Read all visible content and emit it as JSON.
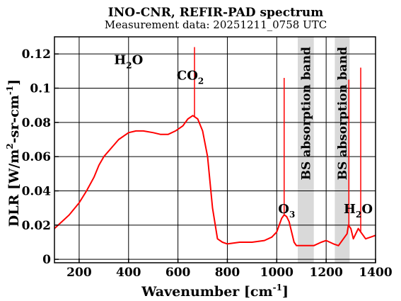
{
  "chart_data": {
    "type": "line",
    "title": "INO-CNR, REFIR-PAD spectrum",
    "subtitle": "Measurement data: 20251211_0758 UTC",
    "xlabel": "Wavenumber [cm^-1]",
    "ylabel": "DLR [W/m^2-sr-cm^-1]",
    "xlim": [
      100,
      1400
    ],
    "ylim": [
      -0.002,
      0.13
    ],
    "x_ticks": [
      200,
      400,
      600,
      800,
      1000,
      1200,
      1400
    ],
    "y_ticks": [
      0,
      0.02,
      0.04,
      0.06,
      0.08,
      0.1,
      0.12
    ],
    "y_tick_labels": [
      "0",
      "0.02",
      "0.04",
      "0.06",
      "0.08",
      "0.1",
      "0.12"
    ],
    "grid": true,
    "line_color": "#ff0000",
    "band_color": "#d9d9d9",
    "series": [
      {
        "x": [
          100,
          130,
          160,
          200,
          230,
          260,
          280,
          300,
          330,
          360,
          400,
          430,
          460,
          500,
          530,
          560,
          590,
          620,
          640,
          660,
          670,
          680,
          700,
          720,
          740,
          760,
          780,
          800,
          850,
          900,
          950,
          980,
          1000,
          1010,
          1020,
          1030,
          1040,
          1050,
          1060,
          1070,
          1080,
          1150,
          1180,
          1200,
          1230,
          1250,
          1285,
          1290,
          1300,
          1310,
          1320,
          1330,
          1340,
          1350,
          1360,
          1380,
          1400
        ],
        "y": [
          0.018,
          0.022,
          0.026,
          0.033,
          0.04,
          0.048,
          0.055,
          0.06,
          0.065,
          0.07,
          0.074,
          0.075,
          0.075,
          0.074,
          0.073,
          0.073,
          0.075,
          0.078,
          0.082,
          0.084,
          0.083,
          0.082,
          0.075,
          0.06,
          0.03,
          0.012,
          0.01,
          0.009,
          0.01,
          0.01,
          0.011,
          0.013,
          0.016,
          0.02,
          0.024,
          0.026,
          0.025,
          0.022,
          0.016,
          0.01,
          0.008,
          0.008,
          0.01,
          0.011,
          0.009,
          0.008,
          0.015,
          0.02,
          0.018,
          0.012,
          0.015,
          0.018,
          0.016,
          0.014,
          0.012,
          0.013,
          0.014
        ]
      }
    ],
    "spikes": [
      {
        "x": 667,
        "y": 0.124
      },
      {
        "x": 1030,
        "y": 0.106
      },
      {
        "x": 1292,
        "y": 0.105
      },
      {
        "x": 1340,
        "y": 0.112
      }
    ],
    "bands": [
      {
        "x0": 1085,
        "x1": 1150,
        "label": "BS absorption band"
      },
      {
        "x0": 1235,
        "x1": 1295,
        "label": "BS absorption band"
      }
    ],
    "annotations": [
      {
        "label": "H2O",
        "main": "H",
        "sub": "2",
        "tail": "O",
        "x": 400,
        "y": 0.114
      },
      {
        "label": "CO2",
        "main": "CO",
        "sub": "2",
        "tail": "",
        "x": 650,
        "y": 0.105
      },
      {
        "label": "O3",
        "main": "O",
        "sub": "3",
        "tail": "",
        "x": 1040,
        "y": 0.027
      },
      {
        "label": "H2O",
        "main": "H",
        "sub": "2",
        "tail": "O",
        "x": 1330,
        "y": 0.027
      }
    ]
  }
}
